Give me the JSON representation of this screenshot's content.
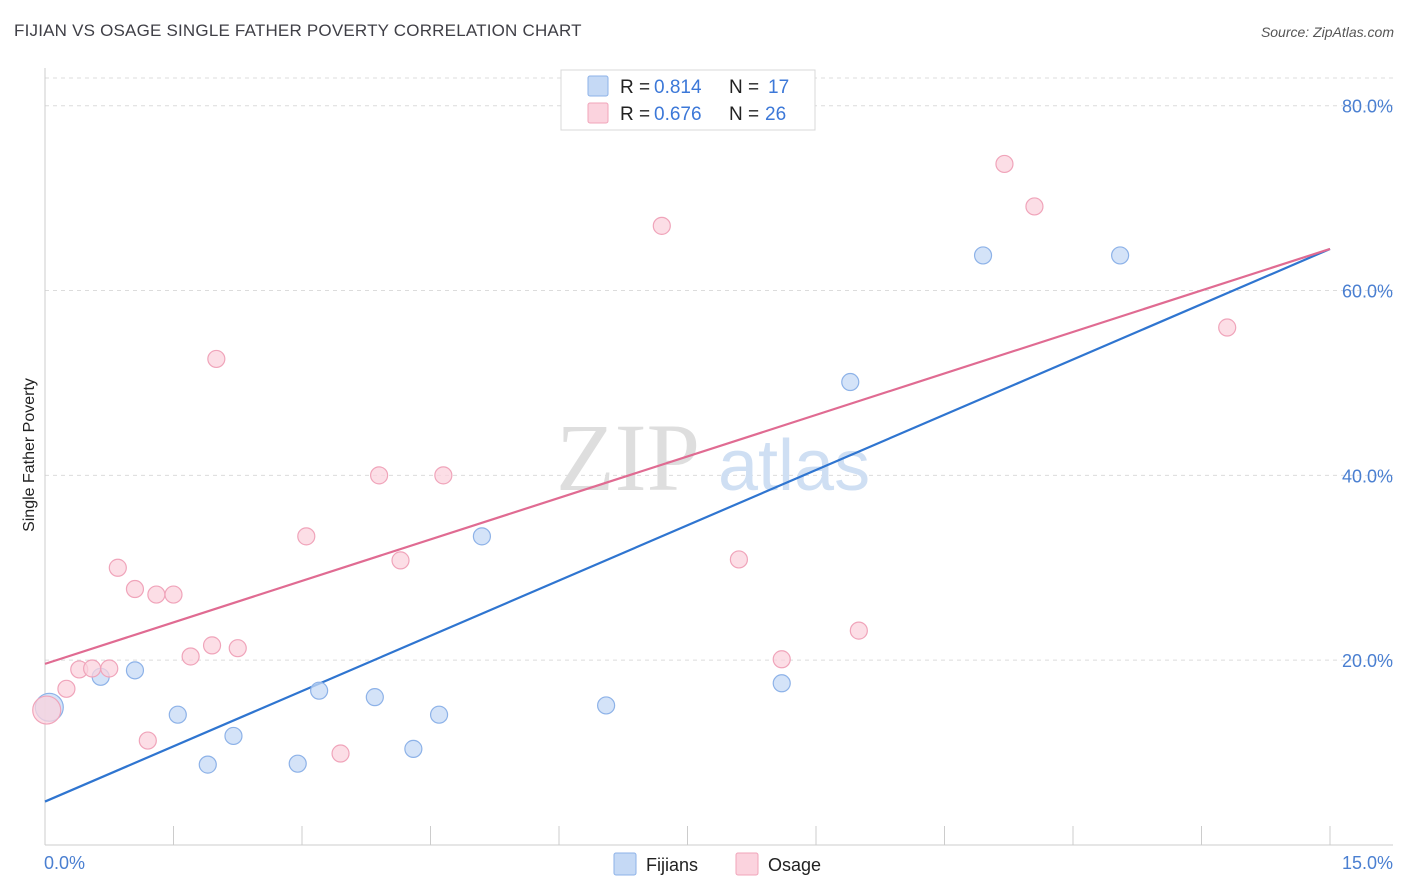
{
  "header": {
    "title": "FIJIAN VS OSAGE SINGLE FATHER POVERTY CORRELATION CHART",
    "source": "Source: ZipAtlas.com"
  },
  "watermark": {
    "zip": "ZIP",
    "atlas": "atlas"
  },
  "colors": {
    "fijian_fill": "#c5d9f5",
    "fijian_stroke": "#8db2e8",
    "fijian_line": "#2f75d0",
    "osage_fill": "#fbd3de",
    "osage_stroke": "#f0a4ba",
    "osage_line": "#e06b92",
    "grid": "#dcdcdc",
    "tick_text": "#4a7fd1"
  },
  "legend": {
    "rows": [
      {
        "r_label": "R = ",
        "r_value": "0.814",
        "n_label": "N = ",
        "n_value": "17"
      },
      {
        "r_label": "R = ",
        "r_value": "0.676",
        "n_label": "N = ",
        "n_value": "26"
      }
    ]
  },
  "bottom_legend": {
    "series1": "Fijians",
    "series2": "Osage"
  },
  "chart_data": {
    "type": "scatter",
    "title": "FIJIAN VS OSAGE SINGLE FATHER POVERTY CORRELATION CHART",
    "xlabel": "",
    "ylabel": "Single Father Poverty",
    "xlim": [
      0,
      15
    ],
    "ylim": [
      0,
      83
    ],
    "x_tick_labels": [
      "0.0%",
      "15.0%"
    ],
    "y_ticks": [
      20,
      40,
      60,
      80
    ],
    "y_tick_labels": [
      "20.0%",
      "40.0%",
      "60.0%",
      "80.0%"
    ],
    "series": [
      {
        "name": "Fijians",
        "R": 0.814,
        "N": 17,
        "points": [
          [
            0.05,
            14.9
          ],
          [
            0.65,
            18.2
          ],
          [
            1.05,
            18.9
          ],
          [
            1.55,
            14.1
          ],
          [
            1.9,
            8.7
          ],
          [
            2.2,
            11.8
          ],
          [
            2.95,
            8.8
          ],
          [
            3.2,
            16.7
          ],
          [
            3.85,
            16.0
          ],
          [
            4.3,
            10.4
          ],
          [
            4.6,
            14.1
          ],
          [
            5.1,
            33.4
          ],
          [
            6.55,
            15.1
          ],
          [
            8.6,
            17.5
          ],
          [
            9.4,
            50.1
          ],
          [
            10.95,
            63.8
          ],
          [
            12.55,
            63.8
          ]
        ],
        "trend": {
          "x": [
            0,
            15
          ],
          "y": [
            4.7,
            64.5
          ]
        }
      },
      {
        "name": "Osage",
        "R": 0.676,
        "N": 26,
        "points": [
          [
            0.02,
            14.6
          ],
          [
            0.25,
            16.9
          ],
          [
            0.4,
            19.0
          ],
          [
            0.55,
            19.1
          ],
          [
            0.75,
            19.1
          ],
          [
            0.85,
            30.0
          ],
          [
            1.05,
            27.7
          ],
          [
            1.3,
            27.1
          ],
          [
            1.5,
            27.1
          ],
          [
            1.2,
            11.3
          ],
          [
            1.7,
            20.4
          ],
          [
            1.95,
            21.6
          ],
          [
            2.0,
            52.6
          ],
          [
            2.25,
            21.3
          ],
          [
            3.05,
            33.4
          ],
          [
            3.45,
            9.9
          ],
          [
            3.9,
            40.0
          ],
          [
            4.15,
            30.8
          ],
          [
            4.65,
            40.0
          ],
          [
            7.2,
            67.0
          ],
          [
            8.1,
            30.9
          ],
          [
            8.6,
            20.1
          ],
          [
            9.5,
            23.2
          ],
          [
            11.2,
            73.7
          ],
          [
            11.55,
            69.1
          ],
          [
            13.8,
            56.0
          ]
        ],
        "trend": {
          "x": [
            0,
            15
          ],
          "y": [
            19.6,
            64.5
          ]
        }
      }
    ]
  }
}
